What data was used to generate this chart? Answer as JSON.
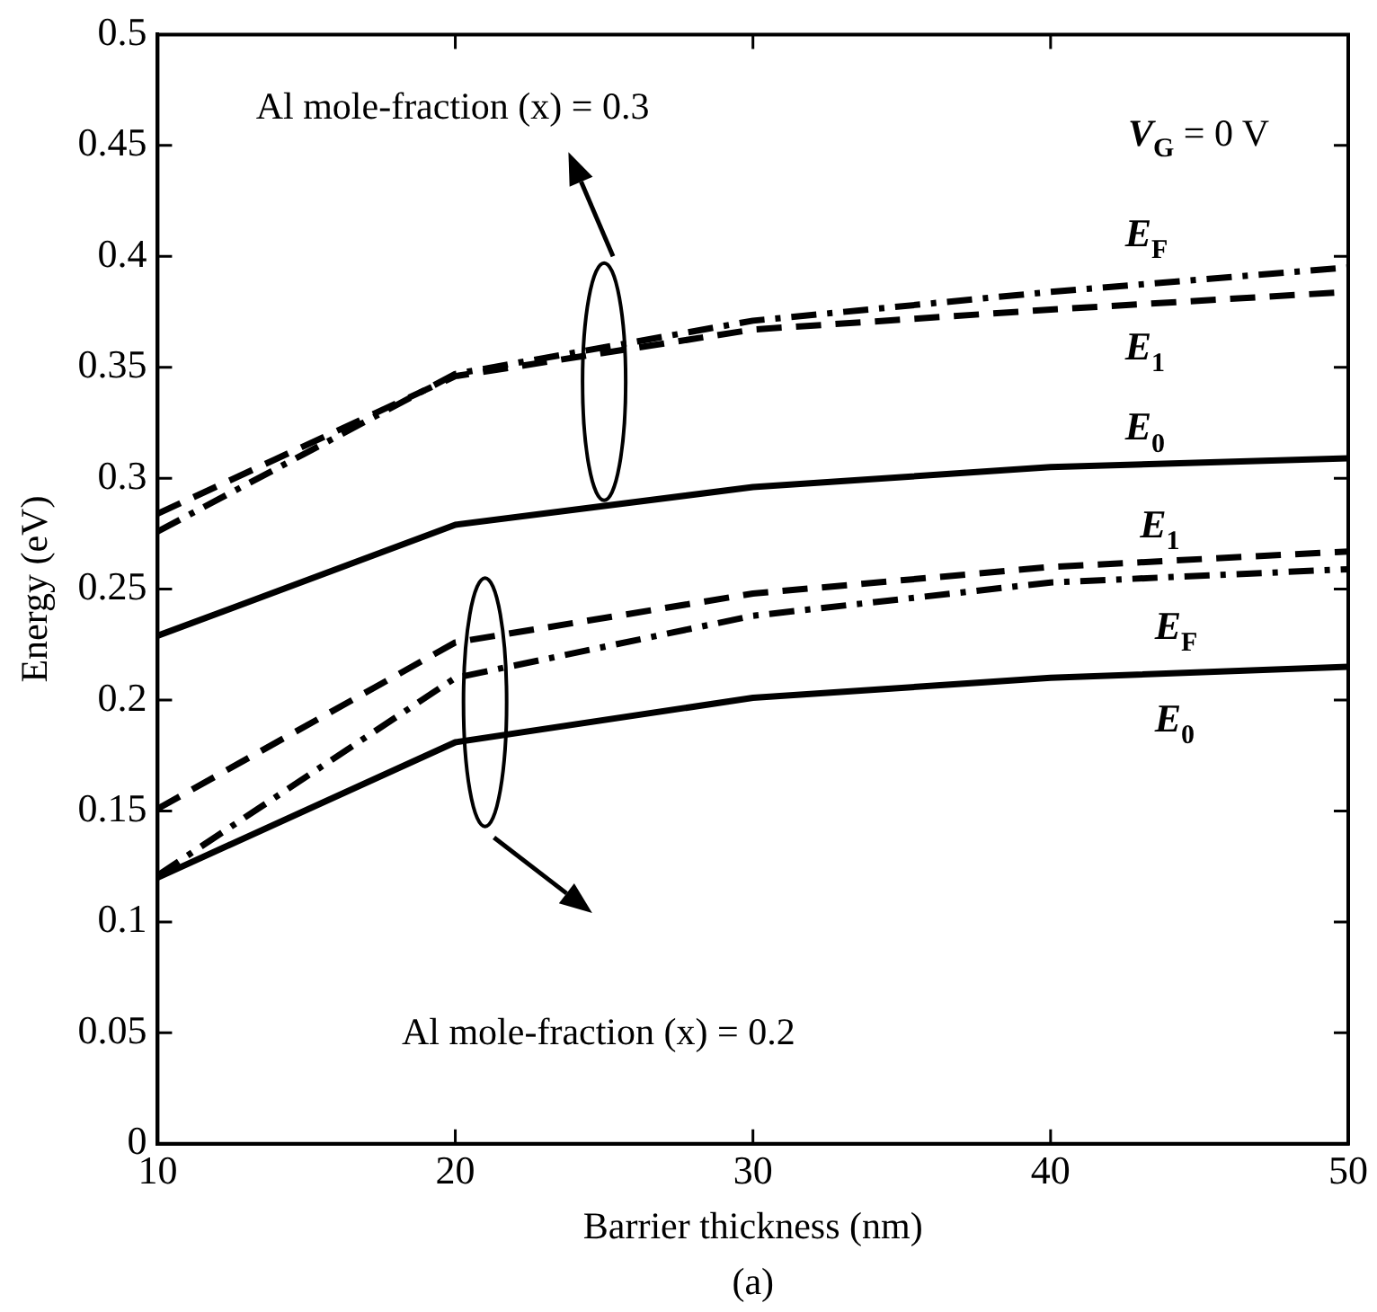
{
  "chart_data": {
    "type": "line",
    "xlabel": "Barrier thickness (nm)",
    "ylabel": "Energy (eV)",
    "x": [
      10,
      20,
      30,
      40,
      50
    ],
    "series": [
      {
        "name": "E$_{F}$",
        "color": "#000000",
        "line_style": "dashdot",
        "values": [
          0.276,
          0.347,
          0.371,
          0.384,
          0.395
        ]
      },
      {
        "name": "E$_{1}$",
        "color": "#000000",
        "line_style": "dashed",
        "values": [
          0.284,
          0.346,
          0.367,
          0.376,
          0.384
        ]
      },
      {
        "name": "E$_{0}$",
        "color": "#000000",
        "line_style": "solid",
        "values": [
          0.229,
          0.279,
          0.296,
          0.305,
          0.309
        ]
      },
      {
        "name": "E$_{1}$",
        "color": "#000000",
        "line_style": "dashed",
        "values": [
          0.151,
          0.226,
          0.248,
          0.26,
          0.267
        ]
      },
      {
        "name": "E$_{F}$",
        "color": "#000000",
        "line_style": "dashdot",
        "values": [
          0.121,
          0.21,
          0.238,
          0.253,
          0.259
        ]
      },
      {
        "name": "E$_{0}$",
        "color": "#000000",
        "line_style": "solid",
        "values": [
          0.12,
          0.181,
          0.201,
          0.21,
          0.215
        ]
      }
    ],
    "xlim": [
      10,
      50
    ],
    "xticks": [
      10,
      20,
      30,
      40,
      50
    ],
    "ylim": [
      0,
      0.5
    ],
    "yticks": [
      0,
      0.05,
      0.1,
      0.15,
      0.2,
      0.25,
      0.3,
      0.35,
      0.4,
      0.45,
      0.5
    ],
    "annotations": [
      "Al mole-fraction (x) = 0.3",
      "V$_{G}$ = 0 V",
      "Al mole-fraction (x) = 0.2",
      "(a)"
    ],
    "grid": false,
    "legend": false,
    "marker": "none"
  }
}
